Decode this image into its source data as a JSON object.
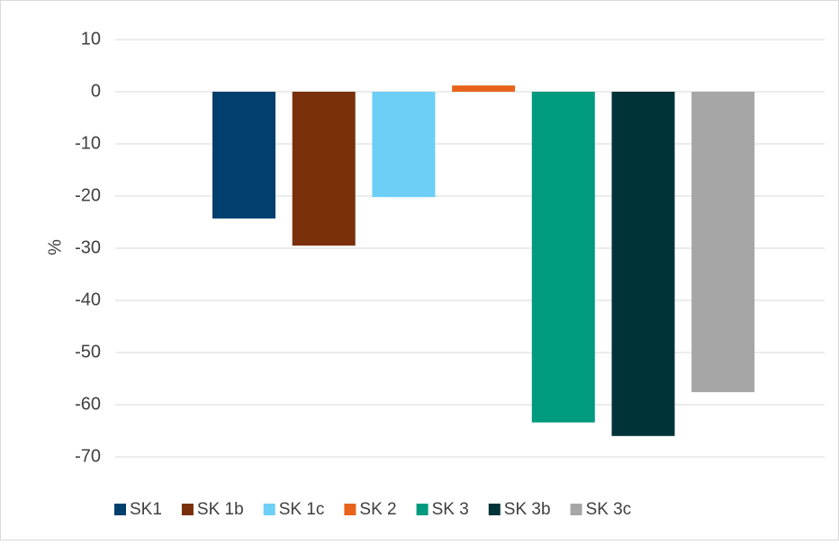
{
  "chart_data": {
    "type": "bar",
    "y_label": "%",
    "categories": [
      null
    ],
    "series": [
      {
        "name": "SK1",
        "color": "#003f6e",
        "values": [
          -24.3
        ]
      },
      {
        "name": "SK 1b",
        "color": "#7a300a",
        "values": [
          -29.5
        ]
      },
      {
        "name": "SK 1c",
        "color": "#6dcff6",
        "values": [
          -20.2
        ]
      },
      {
        "name": "SK 2",
        "color": "#e8641b",
        "values": [
          1.2
        ]
      },
      {
        "name": "SK 3",
        "color": "#009a7e",
        "values": [
          -63.4
        ]
      },
      {
        "name": "SK 3b",
        "color": "#003338",
        "values": [
          -66.0
        ]
      },
      {
        "name": "SK 3c",
        "color": "#a6a6a6",
        "values": [
          -57.6
        ]
      }
    ],
    "ylim": [
      -70,
      10
    ],
    "yticks": [
      10,
      0,
      -10,
      -20,
      -30,
      -40,
      -50,
      -60,
      -70
    ],
    "grid": true,
    "legend": "bottom"
  }
}
